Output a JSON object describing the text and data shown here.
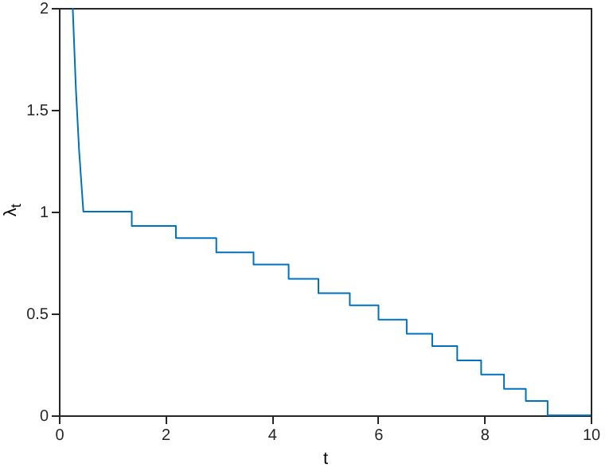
{
  "chart_data": {
    "type": "line",
    "xlabel": "t",
    "ylabel": "λ$_{t}$",
    "x": [
      0.26,
      0.32,
      0.38,
      0.46,
      1.37,
      1.37,
      2.2,
      2.2,
      2.96,
      2.96,
      3.66,
      3.66,
      4.32,
      4.32,
      4.88,
      4.88,
      5.47,
      5.47,
      6.01,
      6.01,
      6.54,
      6.54,
      7.02,
      7.02,
      7.49,
      7.49,
      7.94,
      7.94,
      8.37,
      8.37,
      8.78,
      8.78,
      9.19,
      9.19,
      10
    ],
    "series": [
      {
        "color": "#0072bd",
        "values": [
          2,
          1.6,
          1.3,
          1.0,
          1.0,
          0.93,
          0.93,
          0.87,
          0.87,
          0.8,
          0.8,
          0.74,
          0.74,
          0.67,
          0.67,
          0.6,
          0.6,
          0.54,
          0.54,
          0.47,
          0.47,
          0.4,
          0.4,
          0.34,
          0.34,
          0.27,
          0.27,
          0.2,
          0.2,
          0.13,
          0.13,
          0.07,
          0.07,
          0,
          0
        ]
      }
    ],
    "xlim": [
      0,
      10
    ],
    "xticks": [
      0,
      2,
      4,
      6,
      8,
      10
    ],
    "ylim": [
      0,
      2
    ],
    "yticks": [
      0,
      0.5,
      1,
      1.5,
      2
    ],
    "grid": false,
    "marker": "none",
    "line_style": "solid"
  }
}
